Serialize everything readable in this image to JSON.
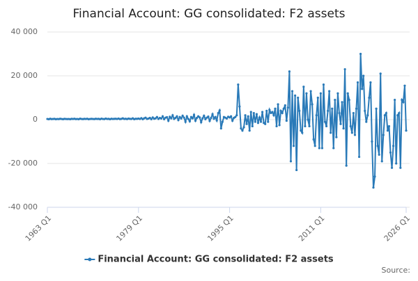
{
  "chart_data": {
    "type": "line",
    "title": "Financial Account: GG consolidated: F2 assets",
    "source": "Source:",
    "categories": [
      "1963 Q1",
      null,
      null,
      null,
      null,
      null,
      null,
      null,
      null,
      null,
      null,
      null,
      null,
      null,
      null,
      null,
      null,
      null,
      null,
      null,
      null,
      null,
      null,
      null,
      null,
      null,
      null,
      null,
      null,
      null,
      null,
      null,
      null,
      null,
      null,
      null,
      null,
      null,
      null,
      null,
      null,
      null,
      null,
      null,
      null,
      null,
      null,
      null,
      null,
      null,
      null,
      null,
      null,
      null,
      null,
      null,
      null,
      null,
      null,
      null,
      null,
      null,
      null,
      null,
      "1979 Q1",
      null,
      null,
      null,
      null,
      null,
      null,
      null,
      null,
      null,
      null,
      null,
      null,
      null,
      null,
      null,
      null,
      null,
      null,
      null,
      null,
      null,
      null,
      null,
      null,
      null,
      null,
      null,
      null,
      null,
      null,
      null,
      null,
      null,
      null,
      null,
      null,
      null,
      null,
      null,
      null,
      null,
      null,
      null,
      null,
      null,
      null,
      null,
      null,
      null,
      null,
      null,
      null,
      null,
      null,
      null,
      null,
      null,
      null,
      null,
      null,
      null,
      null,
      null,
      "1995 Q1",
      null,
      null,
      null,
      null,
      null,
      null,
      null,
      null,
      null,
      null,
      null,
      null,
      null,
      null,
      null,
      null,
      null,
      null,
      null,
      null,
      null,
      null,
      null,
      null,
      null,
      null,
      null,
      null,
      null,
      null,
      null,
      null,
      null,
      null,
      null,
      null,
      null,
      null,
      null,
      null,
      null,
      null,
      null,
      null,
      null,
      null,
      null,
      null,
      null,
      null,
      null,
      null,
      null,
      null,
      null,
      null,
      null,
      null,
      null,
      null,
      null,
      null,
      null,
      "2011 Q1",
      null,
      null,
      null,
      null,
      null,
      null,
      null,
      null,
      null,
      null,
      null,
      null,
      null,
      null,
      null,
      null,
      null,
      null,
      null,
      null,
      null,
      null,
      null,
      null,
      null,
      null,
      null,
      null,
      null,
      null,
      null,
      null,
      null,
      null,
      null,
      null,
      null,
      null,
      null,
      null,
      null,
      null,
      null,
      null,
      null,
      null,
      null,
      null,
      null,
      null,
      null,
      null,
      null,
      null,
      null,
      null,
      null,
      null,
      null,
      "2026 Q1"
    ],
    "series": [
      {
        "name": "Financial Account: GG consolidated: F2 assets",
        "color": "#2a7ab8",
        "values": [
          300,
          200,
          400,
          250,
          300,
          350,
          200,
          300,
          250,
          400,
          300,
          200,
          350,
          300,
          250,
          300,
          200,
          350,
          300,
          400,
          250,
          300,
          200,
          450,
          300,
          250,
          350,
          300,
          400,
          200,
          300,
          350,
          300,
          250,
          400,
          300,
          350,
          200,
          450,
          300,
          250,
          500,
          300,
          350,
          200,
          400,
          300,
          350,
          400,
          300,
          500,
          250,
          350,
          600,
          300,
          400,
          250,
          500,
          350,
          300,
          600,
          200,
          400,
          350,
          500,
          300,
          700,
          200,
          600,
          900,
          300,
          500,
          800,
          200,
          1000,
          400,
          600,
          1200,
          300,
          800,
          500,
          1500,
          200,
          900,
          1100,
          -500,
          1300,
          600,
          2000,
          300,
          800,
          1500,
          -200,
          1200,
          500,
          1800,
          900,
          -1000,
          1500,
          300,
          -800,
          1200,
          600,
          2200,
          -500,
          800,
          1500,
          1000,
          -1200,
          600,
          1800,
          200,
          900,
          1400,
          -600,
          800,
          2500,
          400,
          1200,
          -400,
          3000,
          4200,
          -4000,
          -1000,
          1200,
          900,
          500,
          1300,
          1000,
          1500,
          -500,
          800,
          1200,
          2000,
          16000,
          6000,
          -4000,
          -5000,
          -3500,
          2000,
          -2000,
          1500,
          -5000,
          3500,
          -3000,
          3000,
          -1000,
          2500,
          -1500,
          1000,
          -1000,
          3500,
          -1500,
          -2000,
          4000,
          -1000,
          4500,
          3000,
          3500,
          2000,
          5000,
          -3000,
          7000,
          -2500,
          4000,
          3000,
          5000,
          6500,
          -500,
          5500,
          22000,
          -19000,
          13000,
          -12000,
          11000,
          -23000,
          10000,
          4000,
          -5000,
          -6000,
          15000,
          -3000,
          12000,
          0,
          -3000,
          13000,
          7000,
          -9000,
          -12000,
          2000,
          10000,
          -13000,
          12000,
          -13000,
          16000,
          -1000,
          -3000,
          4000,
          13000,
          -6000,
          5000,
          -13000,
          9000,
          -8000,
          12000,
          3000,
          -2000,
          8000,
          -4000,
          23000,
          -21000,
          12000,
          9000,
          -3000,
          -6000,
          3000,
          -7000,
          5000,
          17000,
          -17000,
          30000,
          14000,
          20000,
          4000,
          -1000,
          2000,
          10000,
          17000,
          -10000,
          -31000,
          -26000,
          5000,
          -12000,
          -16000,
          21000,
          -19000,
          -7000,
          2000,
          3000,
          -5000,
          -3000,
          -15000,
          -22000,
          -12000,
          9000,
          -20000,
          2000,
          3000,
          -22000,
          9000,
          8000,
          15500,
          -5000
        ]
      }
    ],
    "ylim": [
      -40000,
      40000
    ],
    "yticks": [
      {
        "value": -40000,
        "label": "-40 000"
      },
      {
        "value": -20000,
        "label": "-20 000"
      },
      0,
      {
        "value": 20000,
        "label": "20 000"
      },
      {
        "value": 40000,
        "label": "40 000"
      }
    ],
    "grid": true,
    "legend": "bottom"
  }
}
